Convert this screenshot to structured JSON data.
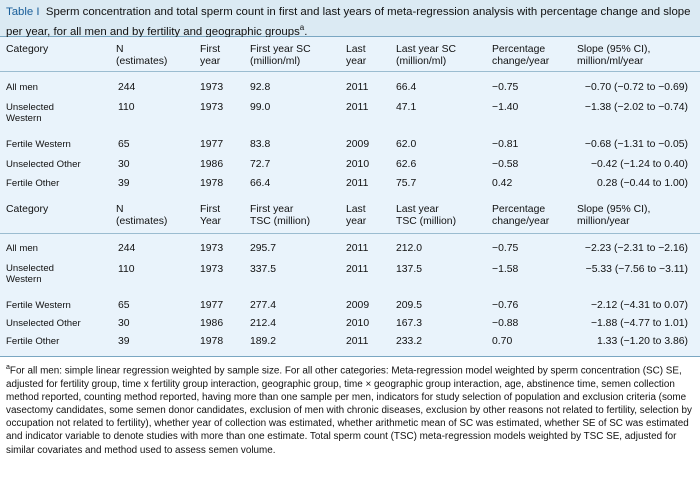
{
  "caption": {
    "label": "Table I",
    "text": "Sperm concentration and total sperm count in first and last years of meta-regression analysis with percentage change and slope per year, for all men and by fertility and geographic groups",
    "footnote_mark": "a",
    "end": "."
  },
  "table1": {
    "headers": {
      "category": "Category",
      "n1": "N",
      "n2": "(estimates)",
      "first_year1": "First",
      "first_year2": "year",
      "first_val1": "First year SC",
      "first_val2": "(million/ml)",
      "last_year1": "Last",
      "last_year2": "year",
      "last_val1": "Last year SC",
      "last_val2": "(million/ml)",
      "pct1": "Percentage",
      "pct2": "change/year",
      "slope1": "Slope (95% CI),",
      "slope2": "million/ml/year"
    },
    "rows": [
      {
        "category": "All men",
        "category2": "",
        "n": "244",
        "first_year": "1973",
        "first_val": "92.8",
        "last_year": "2011",
        "last_val": "66.4",
        "pct": "−0.75",
        "slope": "−0.70 (−0.72 to −0.69)"
      },
      {
        "category": "Unselected",
        "category2": "Western",
        "n": "110",
        "first_year": "1973",
        "first_val": "99.0",
        "last_year": "2011",
        "last_val": "47.1",
        "pct": "−1.40",
        "slope": "−1.38 (−2.02 to −0.74)"
      },
      {
        "category": "Fertile Western",
        "category2": "",
        "n": "65",
        "first_year": "1977",
        "first_val": "83.8",
        "last_year": "2009",
        "last_val": "62.0",
        "pct": "−0.81",
        "slope": "−0.68 (−1.31 to −0.05)"
      },
      {
        "category": "Unselected Other",
        "category2": "",
        "n": "30",
        "first_year": "1986",
        "first_val": "72.7",
        "last_year": "2010",
        "last_val": "62.6",
        "pct": "−0.58",
        "slope": "−0.42 (−1.24 to 0.40)"
      },
      {
        "category": "Fertile Other",
        "category2": "",
        "n": "39",
        "first_year": "1978",
        "first_val": "66.4",
        "last_year": "2011",
        "last_val": "75.7",
        "pct": "0.42",
        "slope": "0.28 (−0.44 to 1.00)"
      }
    ]
  },
  "table2": {
    "headers": {
      "category": "Category",
      "n1": "N",
      "n2": "(estimates)",
      "first_year1": "First",
      "first_year2": "Year",
      "first_val1": "First year",
      "first_val2": "TSC (million)",
      "last_year1": "Last",
      "last_year2": "year",
      "last_val1": "Last year",
      "last_val2": "TSC (million)",
      "pct1": "Percentage",
      "pct2": "change/year",
      "slope1": "Slope (95% CI),",
      "slope2": "million/year"
    },
    "rows": [
      {
        "category": "All men",
        "category2": "",
        "n": "244",
        "first_year": "1973",
        "first_val": "295.7",
        "last_year": "2011",
        "last_val": "212.0",
        "pct": "−0.75",
        "slope": "−2.23 (−2.31 to −2.16)"
      },
      {
        "category": "Unselected",
        "category2": "Western",
        "n": "110",
        "first_year": "1973",
        "first_val": "337.5",
        "last_year": "2011",
        "last_val": "137.5",
        "pct": "−1.58",
        "slope": "−5.33 (−7.56 to −3.11)"
      },
      {
        "category": "Fertile Western",
        "category2": "",
        "n": "65",
        "first_year": "1977",
        "first_val": "277.4",
        "last_year": "2009",
        "last_val": "209.5",
        "pct": "−0.76",
        "slope": "−2.12 (−4.31 to 0.07)"
      },
      {
        "category": "Unselected Other",
        "category2": "",
        "n": "30",
        "first_year": "1986",
        "first_val": "212.4",
        "last_year": "2010",
        "last_val": "167.3",
        "pct": "−0.88",
        "slope": "−1.88 (−4.77 to 1.01)"
      },
      {
        "category": "Fertile Other",
        "category2": "",
        "n": "39",
        "first_year": "1978",
        "first_val": "189.2",
        "last_year": "2011",
        "last_val": "233.2",
        "pct": "0.70",
        "slope": "1.33 (−1.20 to 3.86)"
      }
    ]
  },
  "footnote": {
    "mark": "a",
    "text": "For all men: simple linear regression weighted by sample size. For all other categories: Meta-regression model weighted by sperm concentration (SC) SE, adjusted for fertility group, time x fertility group interaction, geographic group, time × geographic group interaction, age, abstinence time, semen collection method reported, counting method reported, having more than one sample per men, indicators for study selection of population and exclusion criteria (some vasectomy candidates, some semen donor candidates, exclusion of men with chronic diseases, exclusion by other reasons not related to fertility, selection by occupation not related to fertility), whether year of collection was estimated, whether arithmetic mean of SC was estimated, whether SE of SC was estimated and indicator variable to denote studies with more than one estimate. Total sperm count (TSC) meta-regression models weighted by TSC SE, adjusted for similar covariates and method used to assess semen volume."
  }
}
